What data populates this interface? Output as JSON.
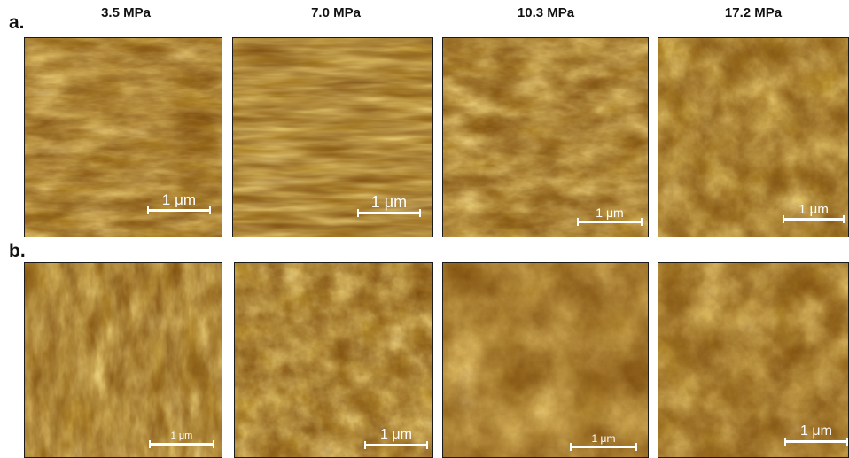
{
  "figure": {
    "row_labels": [
      "a.",
      "b."
    ],
    "column_titles": [
      "3.5 MPa",
      "7.0 MPa",
      "10.3 MPa",
      "17.2 MPa"
    ],
    "scale_bar_label": "1 μm",
    "colormap": {
      "dark": "#3b1d02",
      "mid": "#a06612",
      "light": "#f2c04a",
      "highlight": "#fff1a8"
    }
  }
}
